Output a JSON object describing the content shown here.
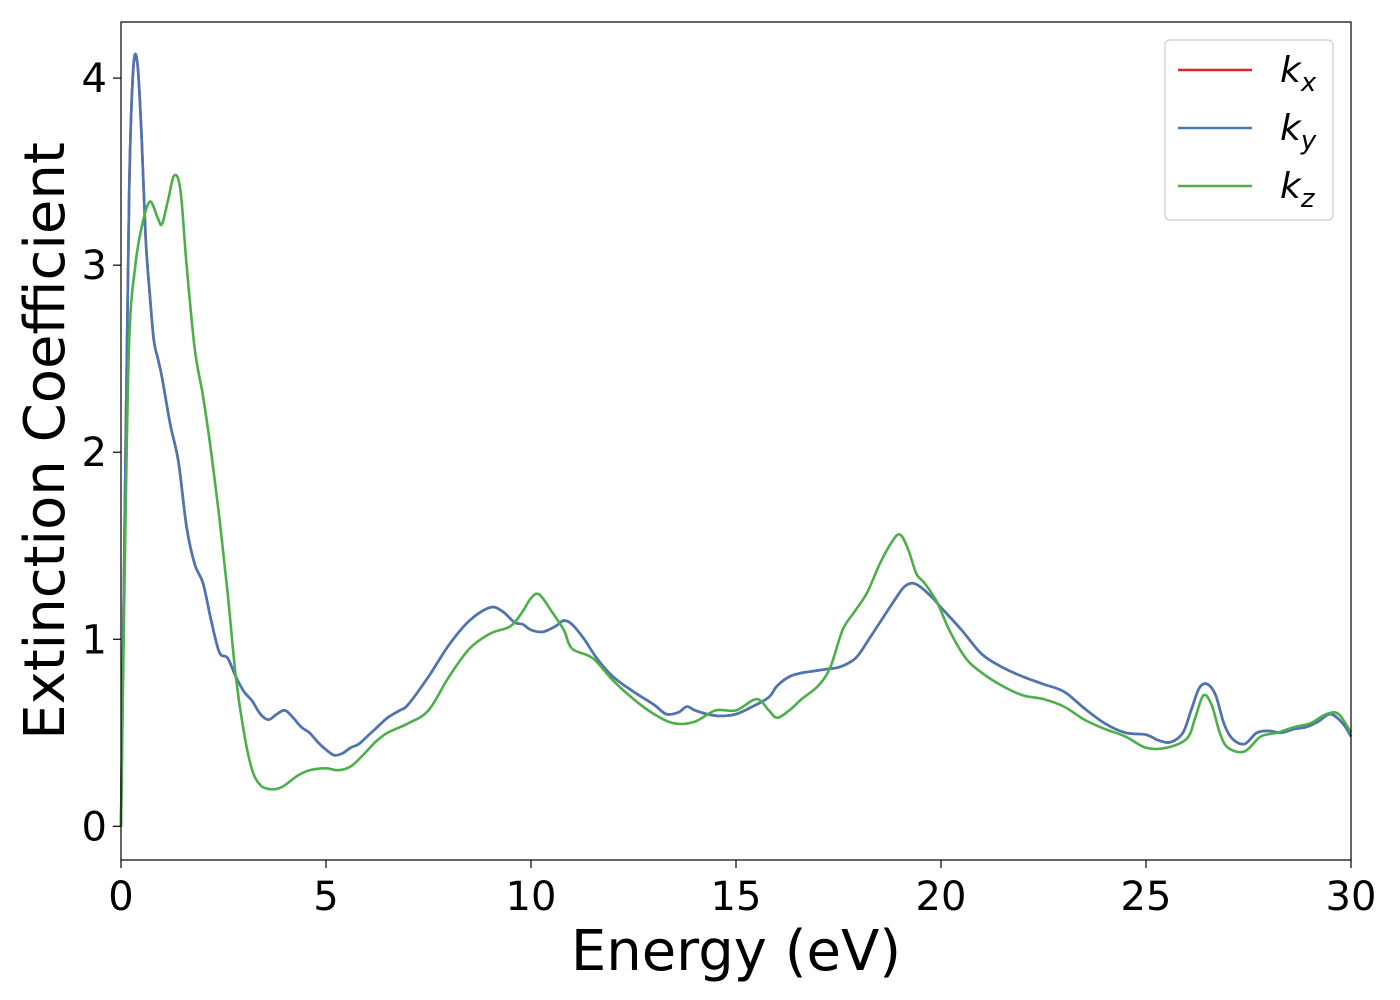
{
  "chart_data": {
    "type": "line",
    "title": "",
    "xlabel": "Energy (eV)",
    "ylabel": "Extinction Coefficient",
    "xlim": [
      0,
      30
    ],
    "ylim": [
      -0.18,
      4.3
    ],
    "xticks": [
      0,
      5,
      10,
      15,
      20,
      25,
      30
    ],
    "yticks": [
      0,
      1,
      2,
      3,
      4
    ],
    "grid": false,
    "legend_position": "top-right",
    "series": [
      {
        "name": "k",
        "subscript": "x",
        "color": "#d62728",
        "x": [
          0,
          0.1,
          0.2,
          0.3,
          0.4,
          0.5,
          0.6,
          0.7,
          0.8,
          0.9,
          1.0,
          1.2,
          1.4,
          1.6,
          1.8,
          2.0,
          2.2,
          2.4,
          2.6,
          2.8,
          3.0,
          3.2,
          3.4,
          3.6,
          3.8,
          4.0,
          4.2,
          4.4,
          4.6,
          4.8,
          5.0,
          5.2,
          5.4,
          5.6,
          5.8,
          6.0,
          6.2,
          6.5,
          6.8,
          7.0,
          7.5,
          8.0,
          8.5,
          9.0,
          9.3,
          9.6,
          9.8,
          10.0,
          10.3,
          10.6,
          10.8,
          11.0,
          11.3,
          11.6,
          12.0,
          12.5,
          13.0,
          13.3,
          13.6,
          13.8,
          14.0,
          14.3,
          14.6,
          15.0,
          15.4,
          15.8,
          16.0,
          16.3,
          16.6,
          16.9,
          17.2,
          17.5,
          17.8,
          18.0,
          18.3,
          18.6,
          18.9,
          19.1,
          19.3,
          19.5,
          19.8,
          20.0,
          20.5,
          21.0,
          21.5,
          22.0,
          22.5,
          23.0,
          23.5,
          24.0,
          24.5,
          25.0,
          25.3,
          25.6,
          25.9,
          26.1,
          26.3,
          26.5,
          26.7,
          26.9,
          27.1,
          27.4,
          27.7,
          28.0,
          28.3,
          28.6,
          28.9,
          29.2,
          29.5,
          29.8,
          30.0
        ],
        "values": [
          0.0,
          1.8,
          3.4,
          4.05,
          4.08,
          3.7,
          3.15,
          2.85,
          2.6,
          2.5,
          2.4,
          2.15,
          1.95,
          1.6,
          1.4,
          1.3,
          1.1,
          0.93,
          0.9,
          0.8,
          0.72,
          0.67,
          0.6,
          0.57,
          0.6,
          0.62,
          0.58,
          0.53,
          0.5,
          0.45,
          0.41,
          0.38,
          0.39,
          0.42,
          0.44,
          0.48,
          0.52,
          0.58,
          0.62,
          0.65,
          0.8,
          0.97,
          1.1,
          1.17,
          1.15,
          1.09,
          1.08,
          1.05,
          1.04,
          1.07,
          1.1,
          1.08,
          1.0,
          0.9,
          0.8,
          0.72,
          0.65,
          0.6,
          0.61,
          0.64,
          0.62,
          0.6,
          0.59,
          0.6,
          0.64,
          0.69,
          0.75,
          0.8,
          0.82,
          0.83,
          0.84,
          0.85,
          0.88,
          0.92,
          1.02,
          1.12,
          1.22,
          1.28,
          1.3,
          1.28,
          1.22,
          1.17,
          1.05,
          0.92,
          0.85,
          0.8,
          0.76,
          0.72,
          0.63,
          0.55,
          0.5,
          0.49,
          0.46,
          0.45,
          0.5,
          0.62,
          0.74,
          0.76,
          0.7,
          0.55,
          0.47,
          0.44,
          0.5,
          0.51,
          0.5,
          0.52,
          0.53,
          0.56,
          0.6,
          0.55,
          0.48
        ]
      },
      {
        "name": "k",
        "subscript": "y",
        "color": "#4a77b3",
        "x": [
          0,
          0.1,
          0.2,
          0.3,
          0.4,
          0.5,
          0.6,
          0.7,
          0.8,
          0.9,
          1.0,
          1.2,
          1.4,
          1.6,
          1.8,
          2.0,
          2.2,
          2.4,
          2.6,
          2.8,
          3.0,
          3.2,
          3.4,
          3.6,
          3.8,
          4.0,
          4.2,
          4.4,
          4.6,
          4.8,
          5.0,
          5.2,
          5.4,
          5.6,
          5.8,
          6.0,
          6.2,
          6.5,
          6.8,
          7.0,
          7.5,
          8.0,
          8.5,
          9.0,
          9.3,
          9.6,
          9.8,
          10.0,
          10.3,
          10.6,
          10.8,
          11.0,
          11.3,
          11.6,
          12.0,
          12.5,
          13.0,
          13.3,
          13.6,
          13.8,
          14.0,
          14.3,
          14.6,
          15.0,
          15.4,
          15.8,
          16.0,
          16.3,
          16.6,
          16.9,
          17.2,
          17.5,
          17.8,
          18.0,
          18.3,
          18.6,
          18.9,
          19.1,
          19.3,
          19.5,
          19.8,
          20.0,
          20.5,
          21.0,
          21.5,
          22.0,
          22.5,
          23.0,
          23.5,
          24.0,
          24.5,
          25.0,
          25.3,
          25.6,
          25.9,
          26.1,
          26.3,
          26.5,
          26.7,
          26.9,
          27.1,
          27.4,
          27.7,
          28.0,
          28.3,
          28.6,
          28.9,
          29.2,
          29.5,
          29.8,
          30.0
        ],
        "values": [
          0.0,
          1.8,
          3.4,
          4.05,
          4.08,
          3.7,
          3.15,
          2.85,
          2.6,
          2.5,
          2.4,
          2.15,
          1.95,
          1.6,
          1.4,
          1.3,
          1.1,
          0.93,
          0.9,
          0.8,
          0.72,
          0.67,
          0.6,
          0.57,
          0.6,
          0.62,
          0.58,
          0.53,
          0.5,
          0.45,
          0.41,
          0.38,
          0.39,
          0.42,
          0.44,
          0.48,
          0.52,
          0.58,
          0.62,
          0.65,
          0.8,
          0.97,
          1.1,
          1.17,
          1.15,
          1.09,
          1.08,
          1.05,
          1.04,
          1.07,
          1.1,
          1.08,
          1.0,
          0.9,
          0.8,
          0.72,
          0.65,
          0.6,
          0.61,
          0.64,
          0.62,
          0.6,
          0.59,
          0.6,
          0.64,
          0.69,
          0.75,
          0.8,
          0.82,
          0.83,
          0.84,
          0.85,
          0.88,
          0.92,
          1.02,
          1.12,
          1.22,
          1.28,
          1.3,
          1.28,
          1.22,
          1.17,
          1.05,
          0.92,
          0.85,
          0.8,
          0.76,
          0.72,
          0.63,
          0.55,
          0.5,
          0.49,
          0.46,
          0.45,
          0.5,
          0.62,
          0.74,
          0.76,
          0.7,
          0.55,
          0.47,
          0.44,
          0.5,
          0.51,
          0.5,
          0.52,
          0.53,
          0.56,
          0.6,
          0.55,
          0.48
        ]
      },
      {
        "name": "k",
        "subscript": "z",
        "color": "#4daf4a",
        "x": [
          0,
          0.1,
          0.2,
          0.35,
          0.5,
          0.7,
          0.9,
          1.0,
          1.15,
          1.3,
          1.45,
          1.6,
          1.8,
          2.0,
          2.2,
          2.4,
          2.6,
          2.8,
          3.0,
          3.2,
          3.4,
          3.6,
          3.8,
          4.0,
          4.3,
          4.6,
          5.0,
          5.3,
          5.6,
          5.9,
          6.2,
          6.5,
          7.0,
          7.5,
          8.0,
          8.5,
          9.0,
          9.5,
          9.8,
          10.0,
          10.2,
          10.5,
          10.8,
          11.0,
          11.5,
          12.0,
          12.5,
          13.0,
          13.5,
          14.0,
          14.5,
          15.0,
          15.5,
          15.8,
          16.0,
          16.3,
          16.6,
          17.0,
          17.3,
          17.6,
          17.9,
          18.2,
          18.5,
          18.8,
          19.0,
          19.2,
          19.4,
          19.6,
          19.9,
          20.2,
          20.6,
          21.0,
          21.5,
          22.0,
          22.5,
          23.0,
          23.5,
          24.0,
          24.5,
          25.0,
          25.5,
          26.0,
          26.2,
          26.4,
          26.6,
          26.8,
          27.0,
          27.4,
          27.8,
          28.2,
          28.6,
          29.0,
          29.4,
          29.7,
          30.0
        ],
        "values": [
          0.0,
          1.5,
          2.6,
          3.0,
          3.2,
          3.34,
          3.25,
          3.22,
          3.35,
          3.48,
          3.4,
          3.0,
          2.55,
          2.3,
          2.0,
          1.65,
          1.25,
          0.8,
          0.5,
          0.3,
          0.22,
          0.2,
          0.2,
          0.22,
          0.27,
          0.3,
          0.31,
          0.3,
          0.32,
          0.38,
          0.45,
          0.5,
          0.55,
          0.62,
          0.8,
          0.95,
          1.03,
          1.07,
          1.15,
          1.22,
          1.24,
          1.15,
          1.05,
          0.95,
          0.9,
          0.78,
          0.68,
          0.6,
          0.55,
          0.56,
          0.62,
          0.62,
          0.68,
          0.62,
          0.58,
          0.62,
          0.68,
          0.75,
          0.85,
          1.05,
          1.15,
          1.25,
          1.4,
          1.52,
          1.56,
          1.48,
          1.35,
          1.3,
          1.2,
          1.05,
          0.9,
          0.82,
          0.75,
          0.7,
          0.68,
          0.64,
          0.57,
          0.52,
          0.48,
          0.42,
          0.42,
          0.47,
          0.58,
          0.7,
          0.65,
          0.5,
          0.42,
          0.4,
          0.48,
          0.5,
          0.53,
          0.55,
          0.6,
          0.6,
          0.5
        ]
      }
    ]
  }
}
